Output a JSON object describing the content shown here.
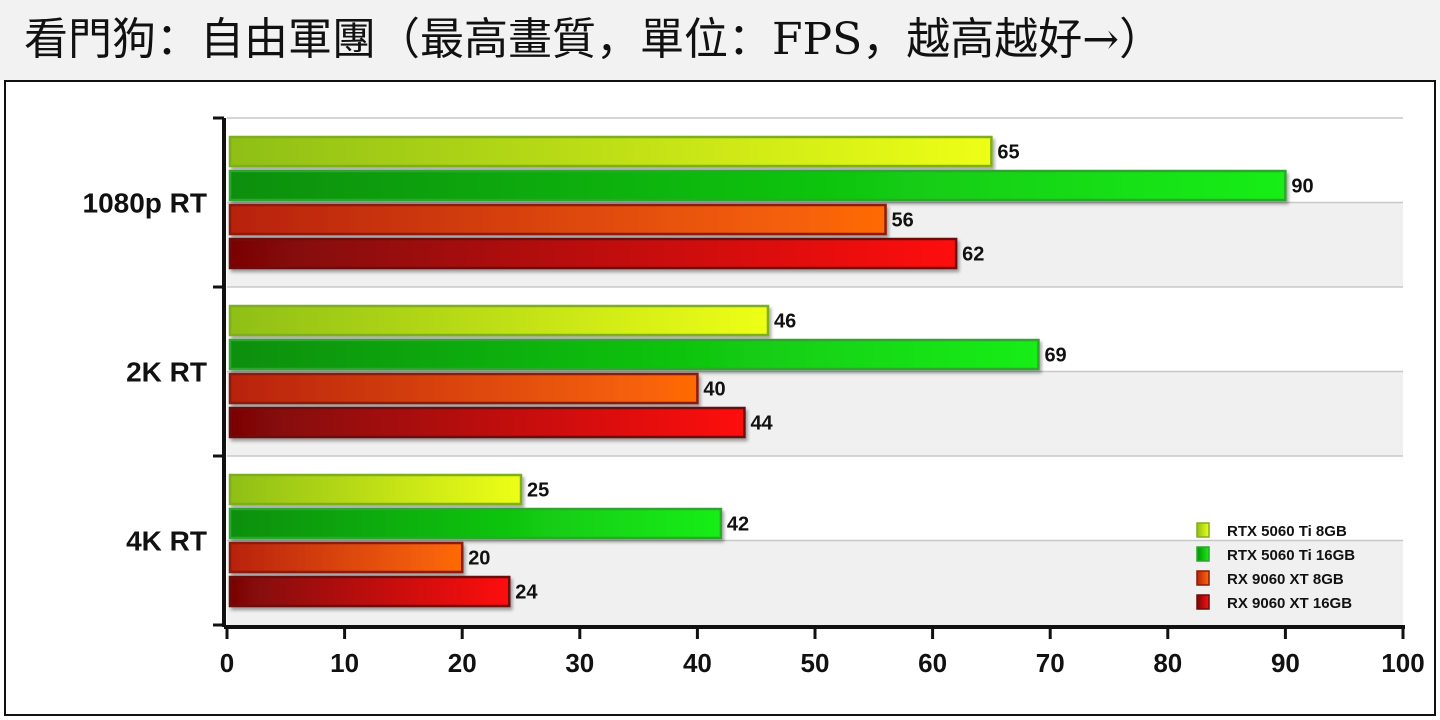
{
  "page": {
    "title": "看門狗：自由軍團（最高畫質，單位：FPS，越高越好→）"
  },
  "chart_data": {
    "type": "bar",
    "orientation": "horizontal",
    "title": "看門狗：自由軍團（最高畫質，單位：FPS，越高越好→）",
    "categories": [
      "1080p RT",
      "2K RT",
      "4K RT"
    ],
    "series": [
      {
        "name": "RTX 5060 Ti 8GB",
        "values": [
          65,
          46,
          25
        ],
        "color_start": "#8fbf18",
        "color_end": "#eeff18",
        "border": "#7fae1c"
      },
      {
        "name": "RTX 5060 Ti 16GB",
        "values": [
          90,
          69,
          42
        ],
        "color_start": "#078f07",
        "color_end": "#18ee18",
        "border": "#2fa52f"
      },
      {
        "name": "RX 9060 XT 8GB",
        "values": [
          56,
          40,
          20
        ],
        "color_start": "#b8220e",
        "color_end": "#ff6a06",
        "border": "#8a1a0a"
      },
      {
        "name": "RX 9060 XT 16GB",
        "values": [
          62,
          44,
          24
        ],
        "color_start": "#7a0606",
        "color_end": "#ff1111",
        "border": "#6a0a0a"
      }
    ],
    "xlim": [
      0,
      100
    ],
    "xticks": [
      0,
      10,
      20,
      30,
      40,
      50,
      60,
      70,
      80,
      90,
      100
    ],
    "xlabel": "",
    "ylabel": "",
    "legend": "bottom-right",
    "grid": true
  }
}
